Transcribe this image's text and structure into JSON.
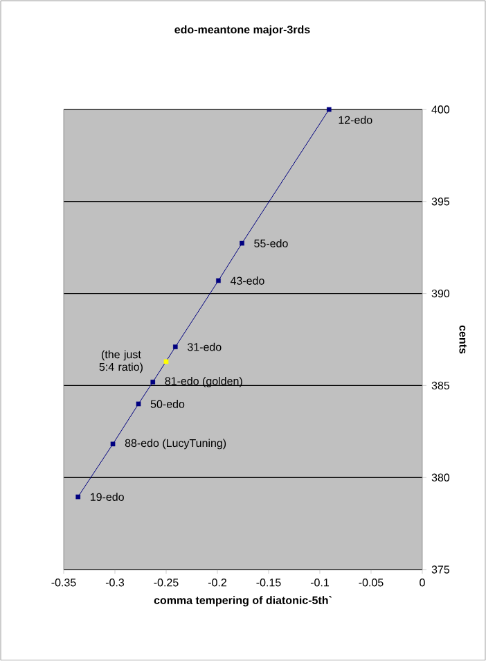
{
  "chart_data": {
    "type": "line",
    "title": "edo-meantone major-3rds",
    "xlabel": "comma tempering of diatonic-5th`",
    "ylabel": "cents",
    "xlim": [
      -0.35,
      0
    ],
    "xticks": [
      -0.35,
      -0.3,
      -0.25,
      -0.2,
      -0.15,
      -0.1,
      -0.05,
      0
    ],
    "ylim": [
      375,
      400
    ],
    "yticks": [
      375,
      380,
      385,
      390,
      395,
      400
    ],
    "grid": "y",
    "marker": "square",
    "line_style": "solid",
    "series": [
      {
        "color": "#000080",
        "x": [
          -0.336,
          -0.302,
          -0.277,
          -0.263,
          -0.241,
          -0.199,
          -0.176,
          -0.091
        ],
        "values": [
          378.95,
          381.82,
          384.0,
          385.19,
          387.1,
          390.7,
          392.73,
          400.0
        ]
      },
      {
        "type": "scatter",
        "color": "#ffff00",
        "x": [
          -0.25
        ],
        "values": [
          386.3
        ]
      }
    ],
    "annotations": [
      {
        "text": "19-edo",
        "x": -0.336,
        "y": 378.95
      },
      {
        "text": "88-edo  (LucyTuning)",
        "x": -0.302,
        "y": 381.82
      },
      {
        "text": "50-edo",
        "x": -0.277,
        "y": 384.0
      },
      {
        "text": "81-edo  (golden)",
        "x": -0.263,
        "y": 385.19
      },
      {
        "text": "31-edo",
        "x": -0.241,
        "y": 387.1
      },
      {
        "text": "43-edo",
        "x": -0.199,
        "y": 390.7
      },
      {
        "text": "55-edo",
        "x": -0.176,
        "y": 392.73
      },
      {
        "text": "12-edo",
        "x": -0.091,
        "y": 400.0
      },
      {
        "text": "(the just 5:4 ratio)",
        "x": -0.25,
        "y": 386.3
      }
    ]
  }
}
